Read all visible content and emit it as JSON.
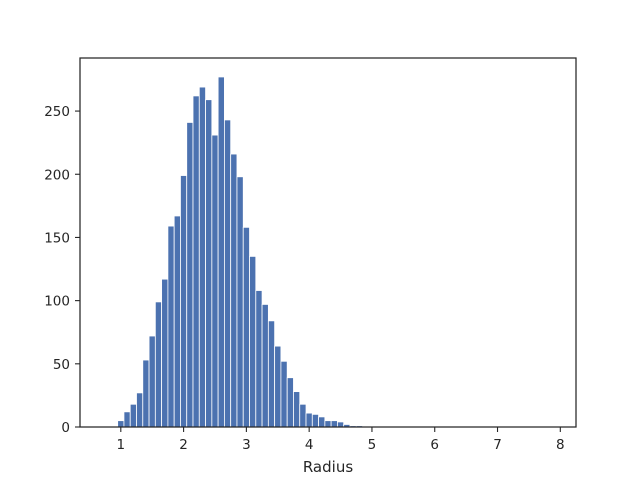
{
  "chart_data": {
    "type": "bar",
    "title": "",
    "xlabel": "Radius",
    "ylabel": "",
    "xlim": [
      0.35,
      8.25
    ],
    "ylim": [
      0,
      292
    ],
    "xticks": [
      1,
      2,
      3,
      4,
      5,
      6,
      7,
      8
    ],
    "yticks": [
      0,
      50,
      100,
      150,
      200,
      250
    ],
    "grid": false,
    "bar_color": "#4c72b0",
    "bin_width": 0.1,
    "bins": [
      {
        "x0": 0.95,
        "count": 5
      },
      {
        "x0": 1.05,
        "count": 12
      },
      {
        "x0": 1.15,
        "count": 18
      },
      {
        "x0": 1.25,
        "count": 27
      },
      {
        "x0": 1.35,
        "count": 53
      },
      {
        "x0": 1.45,
        "count": 72
      },
      {
        "x0": 1.55,
        "count": 99
      },
      {
        "x0": 1.65,
        "count": 117
      },
      {
        "x0": 1.75,
        "count": 159
      },
      {
        "x0": 1.85,
        "count": 167
      },
      {
        "x0": 1.95,
        "count": 199
      },
      {
        "x0": 2.05,
        "count": 241
      },
      {
        "x0": 2.15,
        "count": 262
      },
      {
        "x0": 2.25,
        "count": 269
      },
      {
        "x0": 2.35,
        "count": 259
      },
      {
        "x0": 2.45,
        "count": 231
      },
      {
        "x0": 2.55,
        "count": 277
      },
      {
        "x0": 2.65,
        "count": 243
      },
      {
        "x0": 2.75,
        "count": 216
      },
      {
        "x0": 2.85,
        "count": 198
      },
      {
        "x0": 2.95,
        "count": 158
      },
      {
        "x0": 3.05,
        "count": 135
      },
      {
        "x0": 3.15,
        "count": 108
      },
      {
        "x0": 3.25,
        "count": 97
      },
      {
        "x0": 3.35,
        "count": 84
      },
      {
        "x0": 3.45,
        "count": 64
      },
      {
        "x0": 3.55,
        "count": 52
      },
      {
        "x0": 3.65,
        "count": 39
      },
      {
        "x0": 3.75,
        "count": 28
      },
      {
        "x0": 3.85,
        "count": 18
      },
      {
        "x0": 3.95,
        "count": 11
      },
      {
        "x0": 4.05,
        "count": 10
      },
      {
        "x0": 4.15,
        "count": 8
      },
      {
        "x0": 4.25,
        "count": 5
      },
      {
        "x0": 4.35,
        "count": 5
      },
      {
        "x0": 4.45,
        "count": 4
      },
      {
        "x0": 4.55,
        "count": 2
      },
      {
        "x0": 4.65,
        "count": 1
      },
      {
        "x0": 4.75,
        "count": 1
      }
    ]
  }
}
